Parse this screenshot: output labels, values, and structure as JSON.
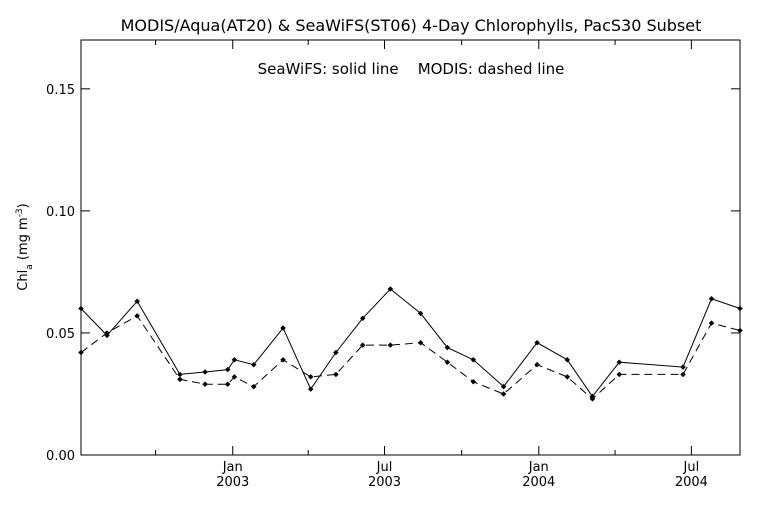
{
  "chart_data": {
    "type": "line",
    "title": "MODIS/Aqua(AT20) & SeaWiFS(ST06) 4-Day Chlorophylls, PacS30 Subset",
    "annotation": "SeaWiFS: solid line    MODIS: dashed line",
    "ylabel": "Chl_a (mg m^-3)",
    "ylabel_parts": {
      "main": "Chl",
      "sub": "a",
      "unit_open": " (mg m",
      "sup": "-3",
      "unit_close": ")"
    },
    "ylim": [
      0,
      0.17
    ],
    "yticks": [
      {
        "value": 0.0,
        "label": "0.00"
      },
      {
        "value": 0.05,
        "label": "0.05"
      },
      {
        "value": 0.1,
        "label": "0.10"
      },
      {
        "value": 0.15,
        "label": "0.15"
      }
    ],
    "xlim": [
      "2002-07-04",
      "2004-08-28"
    ],
    "xticks": [
      {
        "date": "2003-01-01",
        "month": "Jan",
        "year": "2003"
      },
      {
        "date": "2003-07-01",
        "month": "Jul",
        "year": "2003"
      },
      {
        "date": "2004-01-01",
        "month": "Jan",
        "year": "2004"
      },
      {
        "date": "2004-07-01",
        "month": "Jul",
        "year": "2004"
      }
    ],
    "x_minor_ticks": [
      "2002-10-01",
      "2003-04-01",
      "2003-10-01",
      "2004-04-01"
    ],
    "series": [
      {
        "name": "SeaWiFS",
        "style": "solid",
        "color": "#000000",
        "points": [
          {
            "x": "2002-07-04",
            "y": 0.06
          },
          {
            "x": "2002-08-04",
            "y": 0.049
          },
          {
            "x": "2002-09-09",
            "y": 0.063
          },
          {
            "x": "2002-10-30",
            "y": 0.033
          },
          {
            "x": "2002-11-29",
            "y": 0.034
          },
          {
            "x": "2002-12-26",
            "y": 0.035
          },
          {
            "x": "2003-01-03",
            "y": 0.039
          },
          {
            "x": "2003-01-26",
            "y": 0.037
          },
          {
            "x": "2003-03-02",
            "y": 0.052
          },
          {
            "x": "2003-04-04",
            "y": 0.027
          },
          {
            "x": "2003-05-04",
            "y": 0.042
          },
          {
            "x": "2003-06-05",
            "y": 0.056
          },
          {
            "x": "2003-07-08",
            "y": 0.068
          },
          {
            "x": "2003-08-13",
            "y": 0.058
          },
          {
            "x": "2003-09-14",
            "y": 0.044
          },
          {
            "x": "2003-10-15",
            "y": 0.039
          },
          {
            "x": "2003-11-20",
            "y": 0.028
          },
          {
            "x": "2003-12-30",
            "y": 0.046
          },
          {
            "x": "2004-02-04",
            "y": 0.039
          },
          {
            "x": "2004-03-05",
            "y": 0.024
          },
          {
            "x": "2004-04-06",
            "y": 0.038
          },
          {
            "x": "2004-06-21",
            "y": 0.036
          },
          {
            "x": "2004-07-25",
            "y": 0.064
          },
          {
            "x": "2004-08-28",
            "y": 0.06
          }
        ]
      },
      {
        "name": "MODIS",
        "style": "dashed",
        "color": "#000000",
        "points": [
          {
            "x": "2002-07-04",
            "y": 0.042
          },
          {
            "x": "2002-08-04",
            "y": 0.05
          },
          {
            "x": "2002-09-09",
            "y": 0.057
          },
          {
            "x": "2002-10-30",
            "y": 0.031
          },
          {
            "x": "2002-11-29",
            "y": 0.029
          },
          {
            "x": "2002-12-26",
            "y": 0.029
          },
          {
            "x": "2003-01-03",
            "y": 0.032
          },
          {
            "x": "2003-01-26",
            "y": 0.028
          },
          {
            "x": "2003-03-02",
            "y": 0.039
          },
          {
            "x": "2003-04-04",
            "y": 0.032
          },
          {
            "x": "2003-05-04",
            "y": 0.033
          },
          {
            "x": "2003-06-05",
            "y": 0.045
          },
          {
            "x": "2003-07-08",
            "y": 0.045
          },
          {
            "x": "2003-08-13",
            "y": 0.046
          },
          {
            "x": "2003-09-14",
            "y": 0.038
          },
          {
            "x": "2003-10-15",
            "y": 0.03
          },
          {
            "x": "2003-11-20",
            "y": 0.025
          },
          {
            "x": "2003-12-30",
            "y": 0.037
          },
          {
            "x": "2004-02-04",
            "y": 0.032
          },
          {
            "x": "2004-03-05",
            "y": 0.023
          },
          {
            "x": "2004-04-06",
            "y": 0.033
          },
          {
            "x": "2004-06-21",
            "y": 0.033
          },
          {
            "x": "2004-07-25",
            "y": 0.054
          },
          {
            "x": "2004-08-28",
            "y": 0.051
          }
        ]
      }
    ],
    "grid": false,
    "legend": "none"
  }
}
